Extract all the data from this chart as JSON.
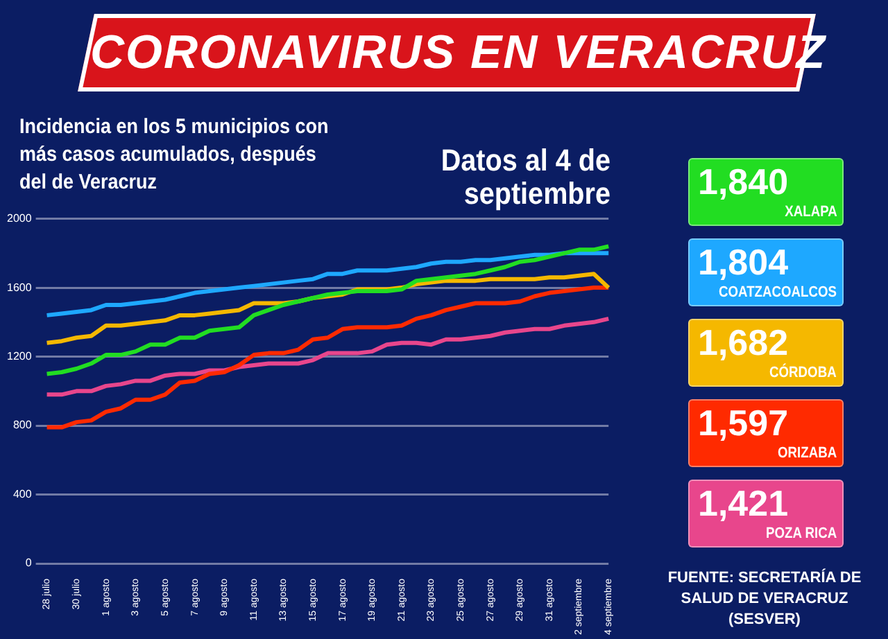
{
  "chart_data": {
    "type": "line",
    "title": "CORONAVIRUS EN VERACRUZ",
    "subtitle": "Incidencia en los 5 municipios con más  casos acumulados, después del de Veracruz",
    "annotations": [
      "Datos al 4 de septiembre",
      "1,840",
      "1,804",
      "1,682",
      "1,597",
      "1,421",
      "FUENTE: SECRETARÍA DE SALUD DE VERACRUZ (SESVER)"
    ],
    "categories": [
      "28 julio",
      null,
      "30 julio",
      null,
      "1 agosto",
      null,
      "3 agosto",
      null,
      "5 agosto",
      null,
      "7 agosto",
      null,
      "9 agosto",
      null,
      "11 agosto",
      null,
      "13 agosto",
      null,
      "15 agosto",
      null,
      "17 agosto",
      null,
      "19 agosto",
      null,
      "21 agosto",
      null,
      "23 agosto",
      null,
      "25 agosto",
      null,
      "27 agosto",
      null,
      "29 agosto",
      null,
      "31 agosto",
      null,
      "2 septiembre",
      null,
      "4 septiembre"
    ],
    "series": [
      {
        "name": "XALAPA",
        "color": "#22dd22",
        "values": [
          1100,
          1110,
          1130,
          1160,
          1210,
          1210,
          1230,
          1270,
          1270,
          1310,
          1310,
          1350,
          1360,
          1370,
          1440,
          1470,
          1500,
          1520,
          1540,
          1560,
          1570,
          1580,
          1580,
          1580,
          1590,
          1640,
          1650,
          1660,
          1670,
          1680,
          1700,
          1720,
          1750,
          1760,
          1780,
          1800,
          1820,
          1820,
          1840
        ]
      },
      {
        "name": "COATZACOALCOS",
        "color": "#1ea8ff",
        "values": [
          1440,
          1450,
          1460,
          1470,
          1500,
          1500,
          1510,
          1520,
          1530,
          1550,
          1570,
          1580,
          1590,
          1600,
          1610,
          1620,
          1630,
          1640,
          1650,
          1680,
          1680,
          1700,
          1700,
          1700,
          1710,
          1720,
          1740,
          1750,
          1750,
          1760,
          1760,
          1770,
          1780,
          1790,
          1790,
          1800,
          1800,
          1800,
          1800
        ]
      },
      {
        "name": "CÓRDOBA",
        "color": "#f5b800",
        "values": [
          1280,
          1290,
          1310,
          1320,
          1380,
          1380,
          1390,
          1400,
          1410,
          1440,
          1440,
          1450,
          1460,
          1470,
          1510,
          1510,
          1510,
          1520,
          1540,
          1550,
          1560,
          1590,
          1590,
          1590,
          1600,
          1620,
          1630,
          1640,
          1640,
          1640,
          1650,
          1650,
          1650,
          1650,
          1660,
          1660,
          1670,
          1680,
          1600
        ]
      },
      {
        "name": "ORIZABA",
        "color": "#ff2a00",
        "values": [
          790,
          790,
          820,
          830,
          880,
          900,
          950,
          950,
          980,
          1050,
          1060,
          1100,
          1110,
          1150,
          1210,
          1220,
          1220,
          1240,
          1300,
          1310,
          1360,
          1370,
          1370,
          1370,
          1380,
          1420,
          1440,
          1470,
          1490,
          1510,
          1510,
          1510,
          1520,
          1550,
          1570,
          1580,
          1590,
          1600,
          1600
        ]
      },
      {
        "name": "POZA RICA",
        "color": "#e8468c",
        "values": [
          980,
          980,
          1000,
          1000,
          1030,
          1040,
          1060,
          1060,
          1090,
          1100,
          1100,
          1120,
          1120,
          1140,
          1150,
          1160,
          1160,
          1160,
          1180,
          1220,
          1220,
          1220,
          1230,
          1270,
          1280,
          1280,
          1270,
          1300,
          1300,
          1310,
          1320,
          1340,
          1350,
          1360,
          1360,
          1380,
          1390,
          1400,
          1420
        ]
      }
    ],
    "ylim": [
      0,
      2000
    ],
    "yticks": [
      0,
      400,
      800,
      1200,
      1600,
      2000
    ],
    "grid": "y",
    "legend": "right",
    "marker": "none",
    "line_style": "solid"
  }
}
